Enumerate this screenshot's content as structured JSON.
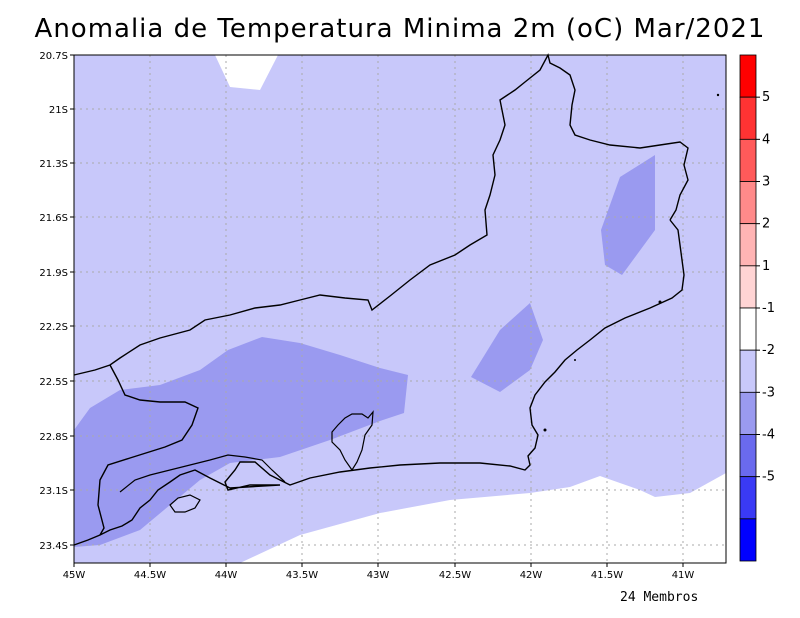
{
  "title": "Anomalia de Temperatura Minima 2m (oC) Mar/2021",
  "footer": "24 Membros",
  "map": {
    "lat_labels": [
      "20.7S",
      "21S",
      "21.3S",
      "21.6S",
      "21.9S",
      "22.2S",
      "22.5S",
      "22.8S",
      "23.1S",
      "23.4S"
    ],
    "lon_labels": [
      "45W",
      "44.5W",
      "44W",
      "43.5W",
      "43W",
      "42.5W",
      "42W",
      "41.5W",
      "41W"
    ],
    "regions": [
      {
        "name": "anomaly -1 to 0",
        "color": "#ffffff"
      },
      {
        "name": "anomaly -2 to -1",
        "color": "#c8c8fa"
      },
      {
        "name": "anomaly -3 to -2",
        "color": "#9a9af0"
      }
    ]
  },
  "colorbar": {
    "labels": [
      "5",
      "4",
      "3",
      "2",
      "1",
      "-1",
      "-2",
      "-3",
      "-4",
      "-5"
    ],
    "colors": [
      "#ff0000",
      "#ff3333",
      "#ff5a5a",
      "#ff8a8a",
      "#ffb4b4",
      "#ffd4d4",
      "#ffffff",
      "#c8c8fa",
      "#9a9af0",
      "#6a6aee",
      "#3a3af5",
      "#0000ff"
    ]
  }
}
